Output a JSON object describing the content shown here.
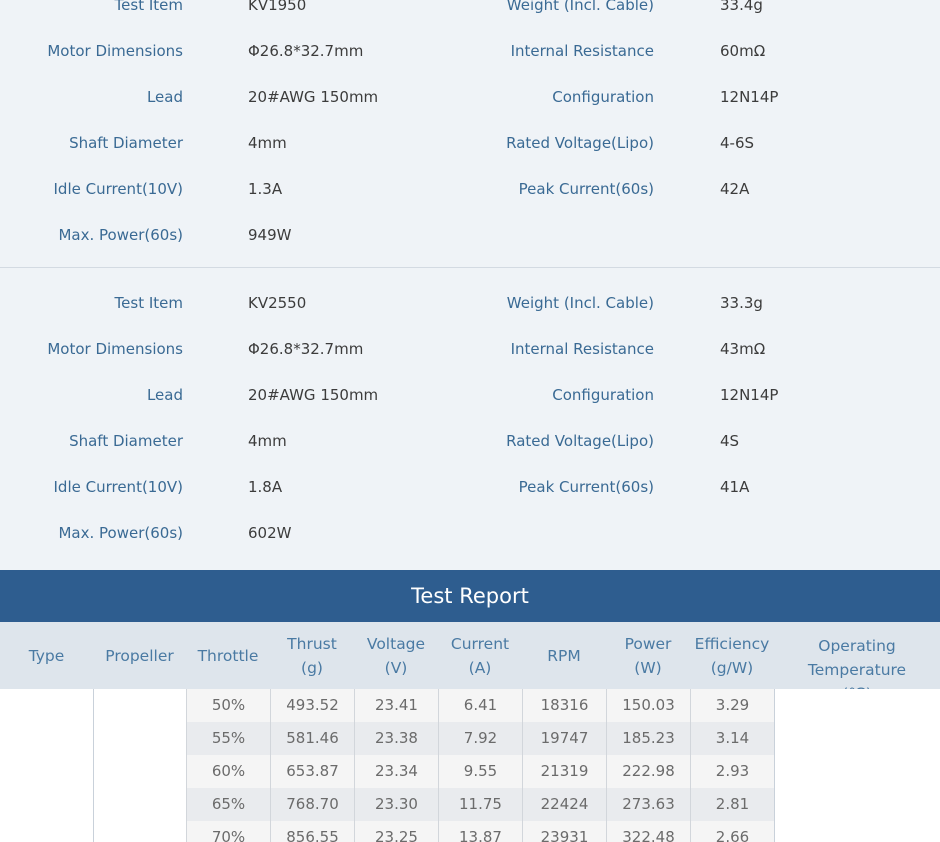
{
  "specs": [
    {
      "left": [
        {
          "label": "Test Item",
          "value": "KV1950"
        },
        {
          "label": "Motor Dimensions",
          "value": "Φ26.8*32.7mm"
        },
        {
          "label": "Lead",
          "value": "20#AWG 150mm"
        },
        {
          "label": "Shaft Diameter",
          "value": "4mm"
        },
        {
          "label": "Idle Current(10V)",
          "value": "1.3A"
        },
        {
          "label": "Max. Power(60s)",
          "value": "949W"
        }
      ],
      "right": [
        {
          "label": "Weight (Incl. Cable)",
          "value": "33.4g"
        },
        {
          "label": "Internal Resistance",
          "value": "60mΩ"
        },
        {
          "label": "Configuration",
          "value": "12N14P"
        },
        {
          "label": "Rated Voltage(Lipo)",
          "value": "4-6S"
        },
        {
          "label": "Peak Current(60s)",
          "value": "42A"
        }
      ]
    },
    {
      "left": [
        {
          "label": "Test Item",
          "value": "KV2550"
        },
        {
          "label": "Motor Dimensions",
          "value": "Φ26.8*32.7mm"
        },
        {
          "label": "Lead",
          "value": "20#AWG 150mm"
        },
        {
          "label": "Shaft Diameter",
          "value": "4mm"
        },
        {
          "label": "Idle Current(10V)",
          "value": "1.8A"
        },
        {
          "label": "Max. Power(60s)",
          "value": "602W"
        }
      ],
      "right": [
        {
          "label": "Weight (Incl. Cable)",
          "value": "33.3g"
        },
        {
          "label": "Internal Resistance",
          "value": "43mΩ"
        },
        {
          "label": "Configuration",
          "value": "12N14P"
        },
        {
          "label": "Rated Voltage(Lipo)",
          "value": "4S"
        },
        {
          "label": "Peak Current(60s)",
          "value": "41A"
        }
      ]
    }
  ],
  "report": {
    "title": "Test Report",
    "headers": [
      [
        "Type"
      ],
      [
        "Propeller"
      ],
      [
        "Throttle"
      ],
      [
        "Thrust",
        "(g)"
      ],
      [
        "Voltage",
        "(V)"
      ],
      [
        "Current",
        "(A)"
      ],
      [
        "RPM"
      ],
      [
        "Power",
        "(W)"
      ],
      [
        "Efficiency",
        "(g/W)"
      ],
      [
        "Operating",
        "Temperature",
        "(℃)"
      ]
    ],
    "rows": [
      [
        "50%",
        "493.52",
        "23.41",
        "6.41",
        "18316",
        "150.03",
        "3.29"
      ],
      [
        "55%",
        "581.46",
        "23.38",
        "7.92",
        "19747",
        "185.23",
        "3.14"
      ],
      [
        "60%",
        "653.87",
        "23.34",
        "9.55",
        "21319",
        "222.98",
        "2.93"
      ],
      [
        "65%",
        "768.70",
        "23.30",
        "11.75",
        "22424",
        "273.63",
        "2.81"
      ],
      [
        "70%",
        "856.55",
        "23.25",
        "13.87",
        "23931",
        "322.48",
        "2.66"
      ]
    ],
    "colors": {
      "bar": "#2e5d8f",
      "header_bg": "#dee5ec",
      "label": "#3a6a94"
    }
  }
}
